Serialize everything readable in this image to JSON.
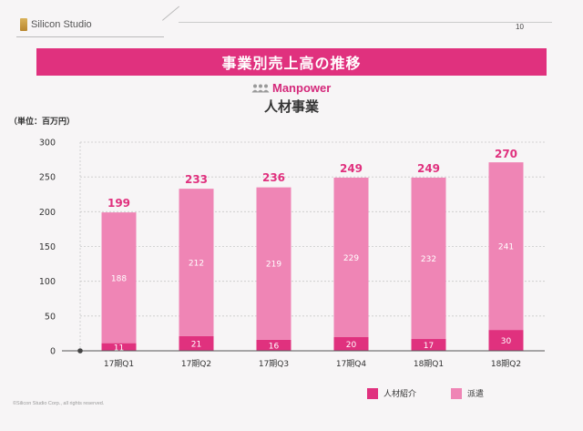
{
  "header": {
    "logo_text": "Silicon Studio",
    "page_number": "10"
  },
  "title": "事業別売上高の推移",
  "brand": "Manpower",
  "segment_title": "人材事業",
  "unit_label": "（単位：百万円）",
  "legend": {
    "placement": "bottom-right",
    "items": [
      {
        "label": "人材紹介",
        "color": "#e0317e"
      },
      {
        "label": "派遣",
        "color": "#ef85b5"
      }
    ]
  },
  "copyright": "©Silicon Studio Corp., all rights reserved.",
  "colors": {
    "accent": "#e0317e",
    "bar_light": "#ef85b5",
    "total_label": "#e0317e"
  },
  "chart_data": {
    "type": "bar",
    "stacked": true,
    "categories": [
      "17期Q1",
      "17期Q2",
      "17期Q3",
      "17期Q4",
      "18期Q1",
      "18期Q2"
    ],
    "series": [
      {
        "name": "人材紹介",
        "values": [
          11,
          21,
          16,
          20,
          17,
          30
        ]
      },
      {
        "name": "派遣",
        "values": [
          188,
          212,
          219,
          229,
          232,
          241
        ]
      }
    ],
    "totals": [
      199,
      233,
      236,
      249,
      249,
      270
    ],
    "ylabel": "（単位：百万円）",
    "ylim": [
      0,
      300
    ],
    "yticks": [
      0,
      50,
      100,
      150,
      200,
      250,
      300
    ],
    "grid": true
  }
}
